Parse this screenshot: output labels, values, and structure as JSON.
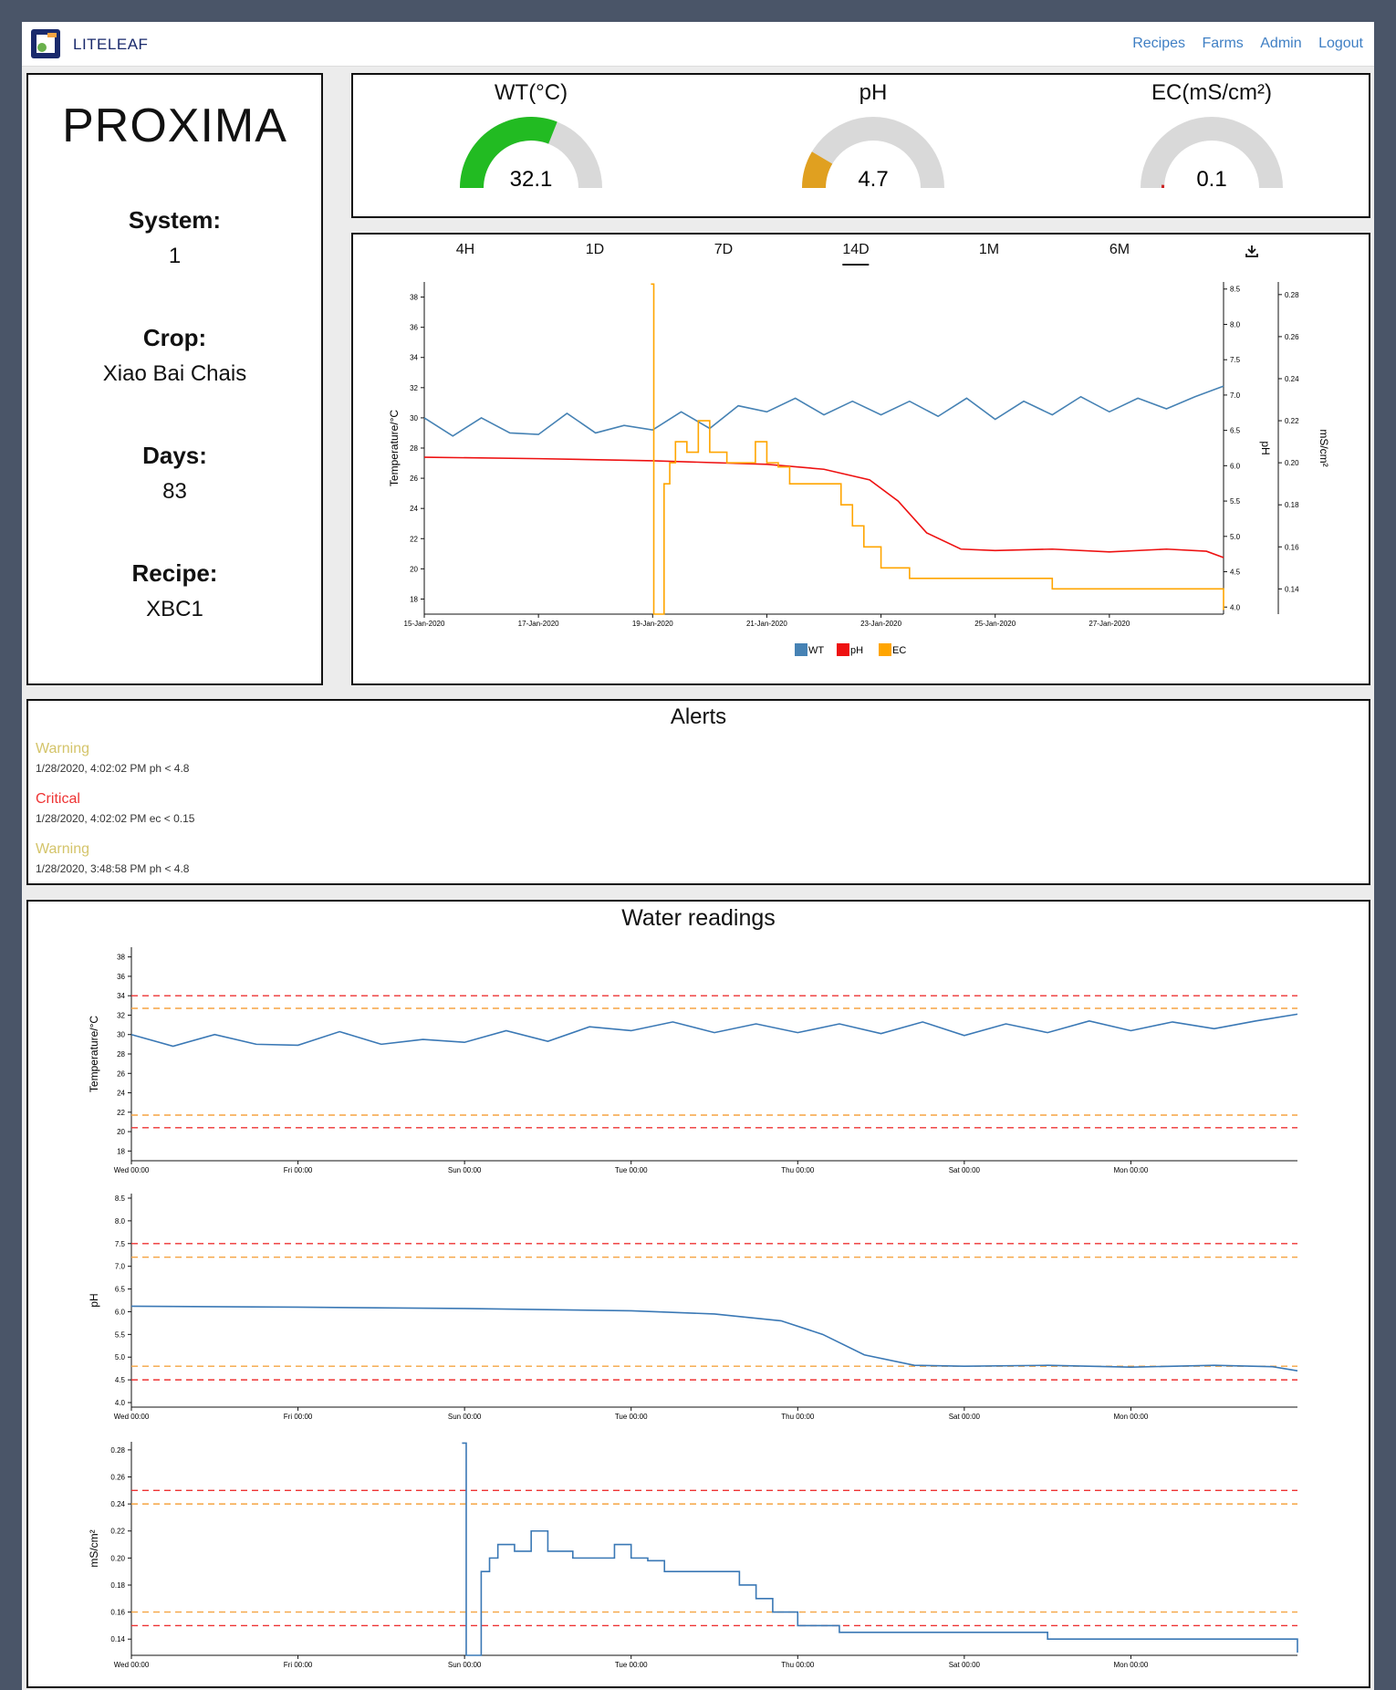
{
  "navbar": {
    "brand": "LITELEAF",
    "links": [
      "Recipes",
      "Farms",
      "Admin",
      "Logout"
    ]
  },
  "farm": {
    "name": "PROXIMA",
    "system_label": "System:",
    "system": "1",
    "crop_label": "Crop:",
    "crop": "Xiao Bai Chais",
    "days_label": "Days:",
    "days": "83",
    "recipe_label": "Recipe:",
    "recipe": "XBC1"
  },
  "gauges": [
    {
      "title": "WT(°C)",
      "value": "32.1",
      "level": 0.62,
      "color": "#22bb22"
    },
    {
      "title": "pH",
      "value": "4.7",
      "level": 0.17,
      "color": "#e0a020"
    },
    {
      "title": "EC(mS/cm²)",
      "value": "0.1",
      "level": 0.02,
      "color": "#cc2222"
    }
  ],
  "time_ranges": [
    "4H",
    "1D",
    "7D",
    "14D",
    "1M",
    "6M"
  ],
  "active_range": "14D",
  "download_icon": "download-icon",
  "colors": {
    "WT": "#4682b4",
    "pH": "#ee1111",
    "EC": "#ffa500",
    "warning": "#d4c46a",
    "critical": "#ee3333",
    "line": "#3a78b5",
    "threshold_red": "#ee3333",
    "threshold_orange": "#f5a442"
  },
  "alerts": {
    "title": "Alerts",
    "items": [
      {
        "level": "Warning",
        "detail": "1/28/2020, 4:02:02 PM ph < 4.8"
      },
      {
        "level": "Critical",
        "detail": "1/28/2020, 4:02:02 PM ec < 0.15"
      },
      {
        "level": "Warning",
        "detail": "1/28/2020, 3:48:58 PM ph < 4.8"
      }
    ]
  },
  "water": {
    "title": "Water readings"
  },
  "chart_data": [
    {
      "type": "line",
      "x_ticks": [
        "15-Jan-2020",
        "17-Jan-2020",
        "19-Jan-2020",
        "21-Jan-2020",
        "23-Jan-2020",
        "25-Jan-2020",
        "27-Jan-2020"
      ],
      "ylabel": "Temperature/°C",
      "ylabel_right1": "pH",
      "ylabel_right2": "mS/cm²",
      "y_ticks": [
        18,
        20,
        22,
        24,
        26,
        28,
        30,
        32,
        34,
        36,
        38
      ],
      "y_right1_ticks": [
        "4.0",
        "4.5",
        "5.0",
        "5.5",
        "6.0",
        "6.5",
        "7.0",
        "7.5",
        "8.0",
        "8.5"
      ],
      "y_right2_ticks": [
        "0.14",
        "0.16",
        "0.18",
        "0.20",
        "0.22",
        "0.24",
        "0.26",
        "0.28"
      ],
      "xlim": [
        0,
        14
      ],
      "ylim": [
        17,
        39
      ],
      "y_right1_lim": [
        3.9,
        8.6
      ],
      "y_right2_lim": [
        0.128,
        0.286
      ],
      "legend": [
        "WT",
        "pH",
        "EC"
      ],
      "series": [
        {
          "name": "WT",
          "x": [
            0,
            0.5,
            1,
            1.5,
            2,
            2.5,
            3,
            3.5,
            4,
            4.5,
            5,
            5.5,
            6,
            6.5,
            7,
            7.5,
            8,
            8.5,
            9,
            9.5,
            10,
            10.5,
            11,
            11.5,
            12,
            12.5,
            13,
            13.5,
            14
          ],
          "y": [
            30,
            28.8,
            30,
            29,
            28.9,
            30.3,
            29,
            29.5,
            29.2,
            30.4,
            29.3,
            30.8,
            30.4,
            31.3,
            30.2,
            31.1,
            30.2,
            31.1,
            30.1,
            31.3,
            29.9,
            31.1,
            30.2,
            31.4,
            30.4,
            31.3,
            30.6,
            31.4,
            32.1
          ]
        },
        {
          "name": "pH",
          "x": [
            0,
            2,
            4,
            6,
            7,
            7.8,
            8.3,
            8.8,
            9.4,
            10,
            11,
            12,
            13,
            13.7,
            14
          ],
          "y": [
            6.12,
            6.1,
            6.07,
            6.02,
            5.95,
            5.8,
            5.5,
            5.05,
            4.82,
            4.8,
            4.82,
            4.78,
            4.82,
            4.79,
            4.7
          ]
        },
        {
          "name": "EC",
          "x": [
            3.97,
            4.02,
            4.2,
            4.3,
            4.4,
            4.6,
            4.8,
            5.0,
            5.3,
            5.8,
            6.0,
            6.2,
            6.4,
            7.0,
            7.3,
            7.5,
            7.7,
            8.0,
            8.5,
            9.0,
            10.0,
            10.5,
            11.0,
            12.0,
            13.0,
            14.0
          ],
          "y": [
            0.285,
            0.128,
            0.19,
            0.2,
            0.21,
            0.205,
            0.22,
            0.205,
            0.2,
            0.21,
            0.2,
            0.198,
            0.19,
            0.19,
            0.18,
            0.17,
            0.16,
            0.15,
            0.145,
            0.145,
            0.145,
            0.145,
            0.14,
            0.14,
            0.14,
            0.13
          ]
        }
      ]
    },
    {
      "type": "line",
      "ylabel": "Temperature/°C",
      "x_ticks": [
        "Wed 00:00",
        "Fri 00:00",
        "Sun 00:00",
        "Tue 00:00",
        "Thu 00:00",
        "Sat 00:00",
        "Mon 00:00"
      ],
      "y_ticks": [
        18,
        20,
        22,
        24,
        26,
        28,
        30,
        32,
        34,
        36,
        38
      ],
      "ylim": [
        17,
        39
      ],
      "xlim": [
        0,
        14
      ],
      "thresholds": [
        {
          "value": 34,
          "level": "critical"
        },
        {
          "value": 32.7,
          "level": "warning"
        },
        {
          "value": 21.7,
          "level": "warning"
        },
        {
          "value": 20.4,
          "level": "critical"
        }
      ],
      "series": [
        {
          "name": "WT",
          "x": [
            0,
            0.5,
            1,
            1.5,
            2,
            2.5,
            3,
            3.5,
            4,
            4.5,
            5,
            5.5,
            6,
            6.5,
            7,
            7.5,
            8,
            8.5,
            9,
            9.5,
            10,
            10.5,
            11,
            11.5,
            12,
            12.5,
            13,
            13.5,
            14
          ],
          "y": [
            30,
            28.8,
            30,
            29,
            28.9,
            30.3,
            29,
            29.5,
            29.2,
            30.4,
            29.3,
            30.8,
            30.4,
            31.3,
            30.2,
            31.1,
            30.2,
            31.1,
            30.1,
            31.3,
            29.9,
            31.1,
            30.2,
            31.4,
            30.4,
            31.3,
            30.6,
            31.4,
            32.1
          ]
        }
      ]
    },
    {
      "type": "line",
      "ylabel": "pH",
      "x_ticks": [
        "Wed 00:00",
        "Fri 00:00",
        "Sun 00:00",
        "Tue 00:00",
        "Thu 00:00",
        "Sat 00:00",
        "Mon 00:00"
      ],
      "y_ticks": [
        "4.0",
        "4.5",
        "5.0",
        "5.5",
        "6.0",
        "6.5",
        "7.0",
        "7.5",
        "8.0",
        "8.5"
      ],
      "ylim": [
        3.9,
        8.6
      ],
      "xlim": [
        0,
        14
      ],
      "thresholds": [
        {
          "value": 7.5,
          "level": "critical"
        },
        {
          "value": 7.2,
          "level": "warning"
        },
        {
          "value": 4.8,
          "level": "warning"
        },
        {
          "value": 4.5,
          "level": "critical"
        }
      ],
      "series": [
        {
          "name": "pH",
          "x": [
            0,
            2,
            4,
            6,
            7,
            7.8,
            8.3,
            8.8,
            9.4,
            10,
            11,
            12,
            13,
            13.7,
            14
          ],
          "y": [
            6.12,
            6.1,
            6.07,
            6.02,
            5.95,
            5.8,
            5.5,
            5.05,
            4.82,
            4.8,
            4.82,
            4.78,
            4.82,
            4.79,
            4.7
          ]
        }
      ]
    },
    {
      "type": "line",
      "ylabel": "mS/cm²",
      "x_ticks": [
        "Wed 00:00",
        "Fri 00:00",
        "Sun 00:00",
        "Tue 00:00",
        "Thu 00:00",
        "Sat 00:00",
        "Mon 00:00"
      ],
      "y_ticks": [
        "0.14",
        "0.16",
        "0.18",
        "0.20",
        "0.22",
        "0.24",
        "0.26",
        "0.28"
      ],
      "ylim": [
        0.128,
        0.286
      ],
      "xlim": [
        0,
        14
      ],
      "thresholds": [
        {
          "value": 0.25,
          "level": "critical"
        },
        {
          "value": 0.24,
          "level": "warning"
        },
        {
          "value": 0.16,
          "level": "warning"
        },
        {
          "value": 0.15,
          "level": "critical"
        }
      ],
      "series": [
        {
          "name": "EC",
          "x": [
            3.97,
            4.02,
            4.2,
            4.3,
            4.4,
            4.6,
            4.8,
            5.0,
            5.3,
            5.8,
            6.0,
            6.2,
            6.4,
            7.0,
            7.3,
            7.5,
            7.7,
            8.0,
            8.5,
            9.0,
            10.0,
            10.5,
            11.0,
            12.0,
            13.0,
            14.0
          ],
          "y": [
            0.285,
            0.128,
            0.19,
            0.2,
            0.21,
            0.205,
            0.22,
            0.205,
            0.2,
            0.21,
            0.2,
            0.198,
            0.19,
            0.19,
            0.18,
            0.17,
            0.16,
            0.15,
            0.145,
            0.145,
            0.145,
            0.145,
            0.14,
            0.14,
            0.14,
            0.13
          ]
        }
      ]
    }
  ]
}
